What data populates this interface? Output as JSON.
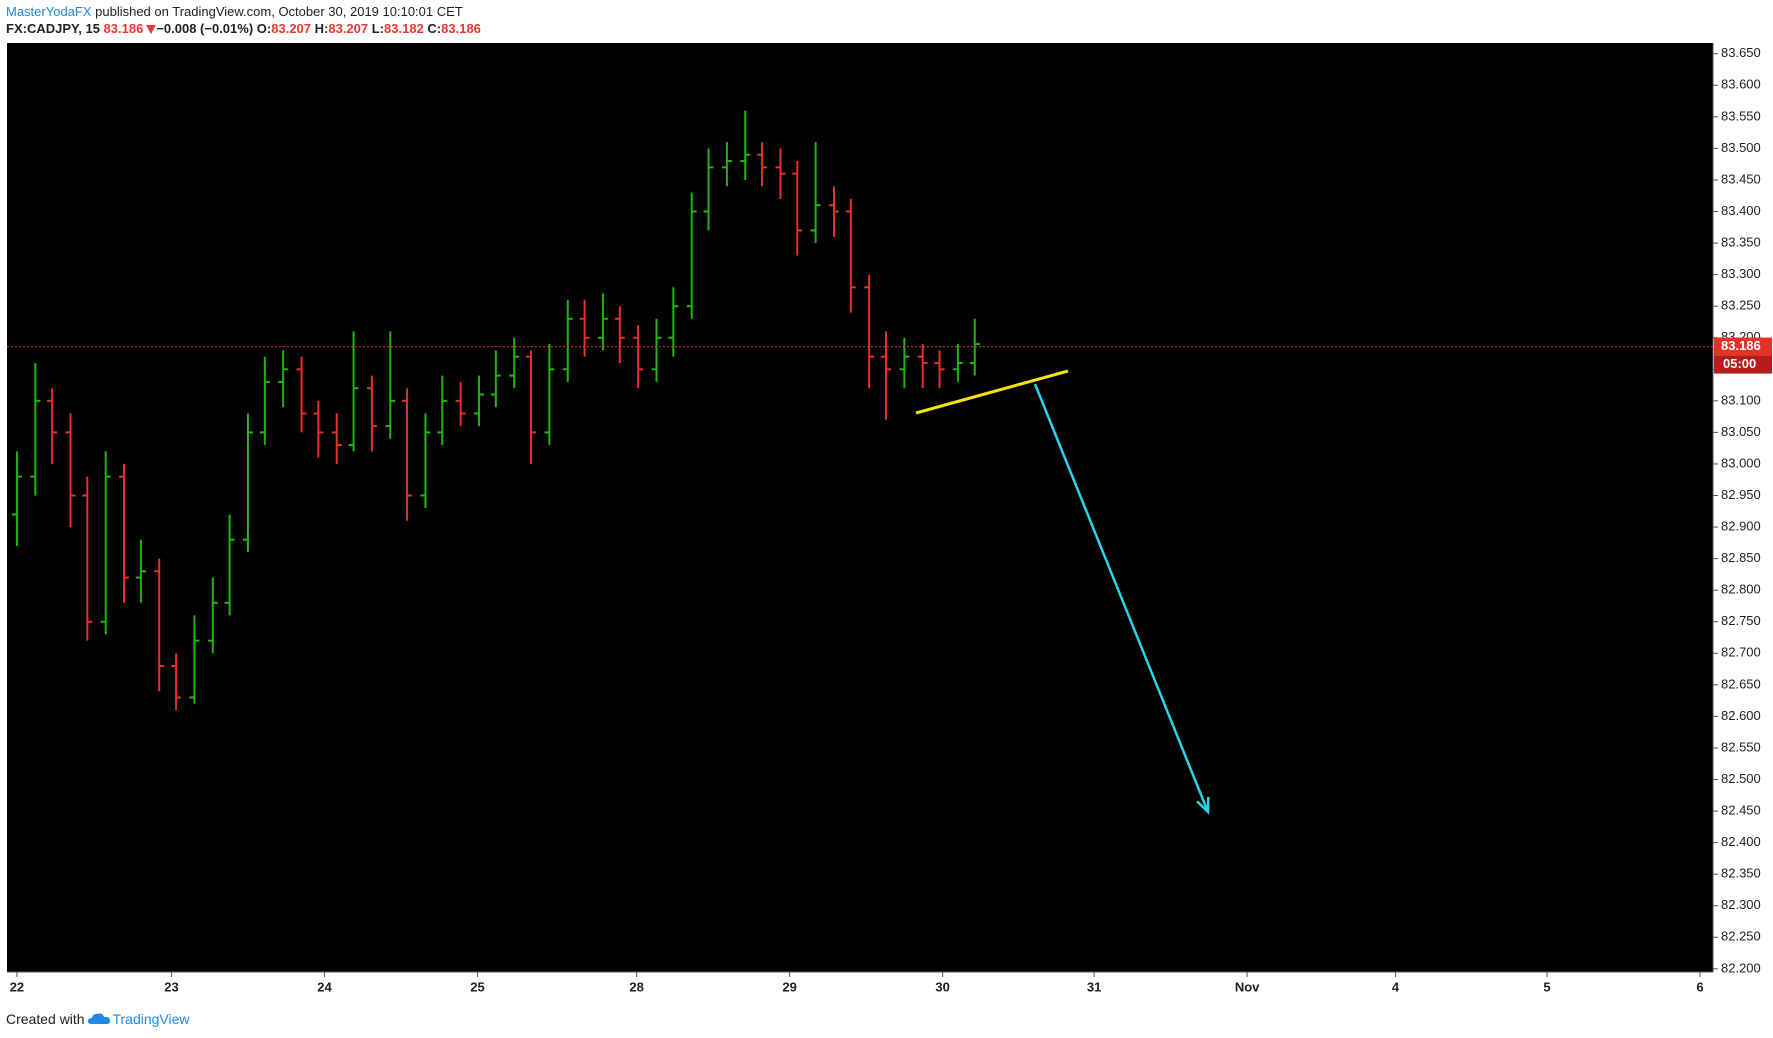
{
  "header": {
    "author": "MasterYodaFX",
    "published": " published on TradingView.com, October 30, 2019 10:10:01 CET",
    "symbol": "FX:CADJPY, 15",
    "last": "83.186",
    "change": "−0.008 (−0.01%)",
    "open_label": "O:",
    "open": "83.207",
    "high_label": "H:",
    "high": "83.207",
    "low_label": "L:",
    "low": "83.182",
    "close_label": "C:",
    "close": "83.186"
  },
  "chart_data": {
    "type": "ohlc",
    "up_color": "#21b40f",
    "down_color": "#e53228",
    "background": "#000000",
    "x": [
      0,
      0.12,
      0.23,
      0.35,
      0.46,
      0.58,
      0.7,
      0.81,
      0.93,
      1.04,
      1.16,
      1.28,
      1.39,
      1.51,
      1.62,
      1.74,
      1.86,
      1.97,
      2.09,
      2.2,
      2.32,
      2.44,
      2.55,
      2.67,
      2.78,
      2.9,
      3.02,
      3.13,
      3.25,
      3.36,
      3.48,
      3.6,
      3.71,
      3.83,
      3.94,
      4.06,
      4.18,
      4.29,
      4.41,
      4.52,
      4.64,
      4.76,
      4.87,
      4.99,
      5.1,
      5.22,
      5.34,
      5.45,
      5.57,
      5.68,
      5.8,
      5.92,
      6.03,
      6.15,
      6.26
    ],
    "open": [
      82.92,
      82.98,
      83.1,
      83.05,
      82.95,
      82.75,
      82.98,
      82.82,
      82.83,
      82.68,
      82.63,
      82.72,
      82.78,
      82.88,
      83.05,
      83.13,
      83.15,
      83.08,
      83.05,
      83.03,
      83.12,
      83.06,
      83.1,
      82.95,
      83.05,
      83.1,
      83.08,
      83.11,
      83.14,
      83.17,
      83.05,
      83.15,
      83.23,
      83.2,
      83.23,
      83.2,
      83.15,
      83.2,
      83.25,
      83.4,
      83.47,
      83.48,
      83.49,
      83.47,
      83.46,
      83.37,
      83.41,
      83.4,
      83.28,
      83.17,
      83.15,
      83.17,
      83.16,
      83.15,
      83.16
    ],
    "high": [
      83.02,
      83.16,
      83.12,
      83.08,
      82.98,
      83.02,
      83.0,
      82.88,
      82.85,
      82.7,
      82.76,
      82.82,
      82.92,
      83.08,
      83.17,
      83.18,
      83.17,
      83.1,
      83.08,
      83.21,
      83.14,
      83.21,
      83.12,
      83.08,
      83.14,
      83.13,
      83.14,
      83.18,
      83.2,
      83.18,
      83.19,
      83.26,
      83.26,
      83.27,
      83.25,
      83.22,
      83.23,
      83.28,
      83.43,
      83.5,
      83.51,
      83.56,
      83.51,
      83.5,
      83.48,
      83.51,
      83.44,
      83.42,
      83.3,
      83.21,
      83.2,
      83.19,
      83.18,
      83.19,
      83.23
    ],
    "low": [
      82.87,
      82.95,
      83.0,
      82.9,
      82.72,
      82.73,
      82.78,
      82.78,
      82.64,
      82.61,
      82.62,
      82.7,
      82.76,
      82.86,
      83.03,
      83.09,
      83.05,
      83.01,
      83.0,
      83.02,
      83.02,
      83.04,
      82.91,
      82.93,
      83.03,
      83.06,
      83.06,
      83.09,
      83.12,
      83.0,
      83.03,
      83.13,
      83.17,
      83.18,
      83.16,
      83.12,
      83.13,
      83.17,
      83.23,
      83.37,
      83.44,
      83.45,
      83.44,
      83.42,
      83.33,
      83.35,
      83.36,
      83.24,
      83.12,
      83.07,
      83.12,
      83.12,
      83.12,
      83.13,
      83.14
    ],
    "close": [
      82.98,
      83.1,
      83.05,
      82.95,
      82.75,
      82.98,
      82.82,
      82.83,
      82.68,
      82.63,
      82.72,
      82.78,
      82.88,
      83.05,
      83.13,
      83.15,
      83.08,
      83.05,
      83.03,
      83.12,
      83.06,
      83.1,
      82.95,
      83.05,
      83.1,
      83.08,
      83.11,
      83.14,
      83.17,
      83.05,
      83.15,
      83.23,
      83.2,
      83.23,
      83.2,
      83.15,
      83.2,
      83.25,
      83.4,
      83.47,
      83.48,
      83.49,
      83.47,
      83.46,
      83.37,
      83.41,
      83.4,
      83.28,
      83.17,
      83.15,
      83.17,
      83.16,
      83.15,
      83.16,
      83.19
    ],
    "last_price": {
      "value": 83.186,
      "label": "83.186"
    },
    "countdown": "05:00",
    "xlim": [
      -0.065,
      11.085
    ],
    "xticks": [
      {
        "value": 0,
        "label": "22"
      },
      {
        "value": 1.01,
        "label": "23"
      },
      {
        "value": 2.01,
        "label": "24"
      },
      {
        "value": 3.01,
        "label": "25"
      },
      {
        "value": 4.05,
        "label": "28"
      },
      {
        "value": 5.05,
        "label": "29"
      },
      {
        "value": 6.05,
        "label": "30"
      },
      {
        "value": 7.04,
        "label": "31"
      },
      {
        "value": 8.04,
        "label": "Nov"
      },
      {
        "value": 9.01,
        "label": "4"
      },
      {
        "value": 10.0,
        "label": "5"
      },
      {
        "value": 11.0,
        "label": "6"
      }
    ],
    "ylim": [
      82.195,
      83.667
    ],
    "yticks": [
      {
        "value": 82.2,
        "label": "82.200"
      },
      {
        "value": 82.25,
        "label": "82.250"
      },
      {
        "value": 82.3,
        "label": "82.300"
      },
      {
        "value": 82.35,
        "label": "82.350"
      },
      {
        "value": 82.4,
        "label": "82.400"
      },
      {
        "value": 82.45,
        "label": "82.450"
      },
      {
        "value": 82.5,
        "label": "82.500"
      },
      {
        "value": 82.55,
        "label": "82.550"
      },
      {
        "value": 82.6,
        "label": "82.600"
      },
      {
        "value": 82.65,
        "label": "82.650"
      },
      {
        "value": 82.7,
        "label": "82.700"
      },
      {
        "value": 82.75,
        "label": "82.750"
      },
      {
        "value": 82.8,
        "label": "82.800"
      },
      {
        "value": 82.85,
        "label": "82.850"
      },
      {
        "value": 82.9,
        "label": "82.900"
      },
      {
        "value": 82.95,
        "label": "82.950"
      },
      {
        "value": 83.0,
        "label": "83.000"
      },
      {
        "value": 83.05,
        "label": "83.050"
      },
      {
        "value": 83.1,
        "label": "83.100"
      },
      {
        "value": 83.15,
        "label": "83.150"
      },
      {
        "value": 83.2,
        "label": "83.200"
      },
      {
        "value": 83.25,
        "label": "83.250"
      },
      {
        "value": 83.3,
        "label": "83.300"
      },
      {
        "value": 83.35,
        "label": "83.350"
      },
      {
        "value": 83.4,
        "label": "83.400"
      },
      {
        "value": 83.45,
        "label": "83.450"
      },
      {
        "value": 83.5,
        "label": "83.500"
      },
      {
        "value": 83.55,
        "label": "83.550"
      },
      {
        "value": 83.6,
        "label": "83.600"
      },
      {
        "value": 83.65,
        "label": "83.650"
      }
    ]
  },
  "footer": {
    "created": "Created with",
    "brand": "TradingView"
  }
}
